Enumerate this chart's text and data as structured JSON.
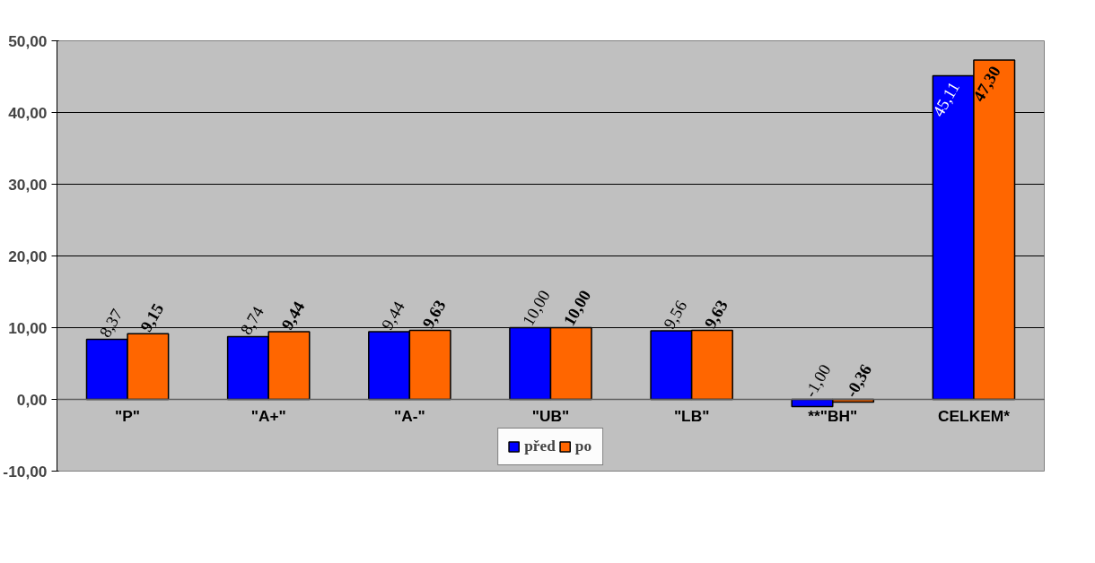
{
  "chart_data": {
    "type": "bar",
    "categories": [
      "\"P\"",
      "\"A+\"",
      "\"A-\"",
      "\"UB\"",
      "\"LB\"",
      "**\"BH\"",
      "CELKEM*"
    ],
    "series": [
      {
        "name": "před",
        "color": "#0000ff",
        "values": [
          8.37,
          8.74,
          9.44,
          10.0,
          9.56,
          -1.0,
          45.11
        ],
        "value_labels": [
          "8,37",
          "8,74",
          "9,44",
          "10,00",
          "9,56",
          "-1,00",
          "45,11"
        ]
      },
      {
        "name": "po",
        "color": "#ff6600",
        "values": [
          9.15,
          9.44,
          9.63,
          10.0,
          9.63,
          -0.36,
          47.3
        ],
        "value_labels": [
          "9,15",
          "9,44",
          "9,63",
          "10,00",
          "9,63",
          "-0,36",
          "47,30"
        ]
      }
    ],
    "ylim": [
      -10,
      50
    ],
    "yticks": [
      {
        "value": -10,
        "label": "-10,00"
      },
      {
        "value": 0,
        "label": "0,00"
      },
      {
        "value": 10,
        "label": "10,00"
      },
      {
        "value": 20,
        "label": "20,00"
      },
      {
        "value": 30,
        "label": "30,00"
      },
      {
        "value": 40,
        "label": "40,00"
      },
      {
        "value": 50,
        "label": "50,00"
      }
    ],
    "grid": "y",
    "legend": "bottom"
  }
}
